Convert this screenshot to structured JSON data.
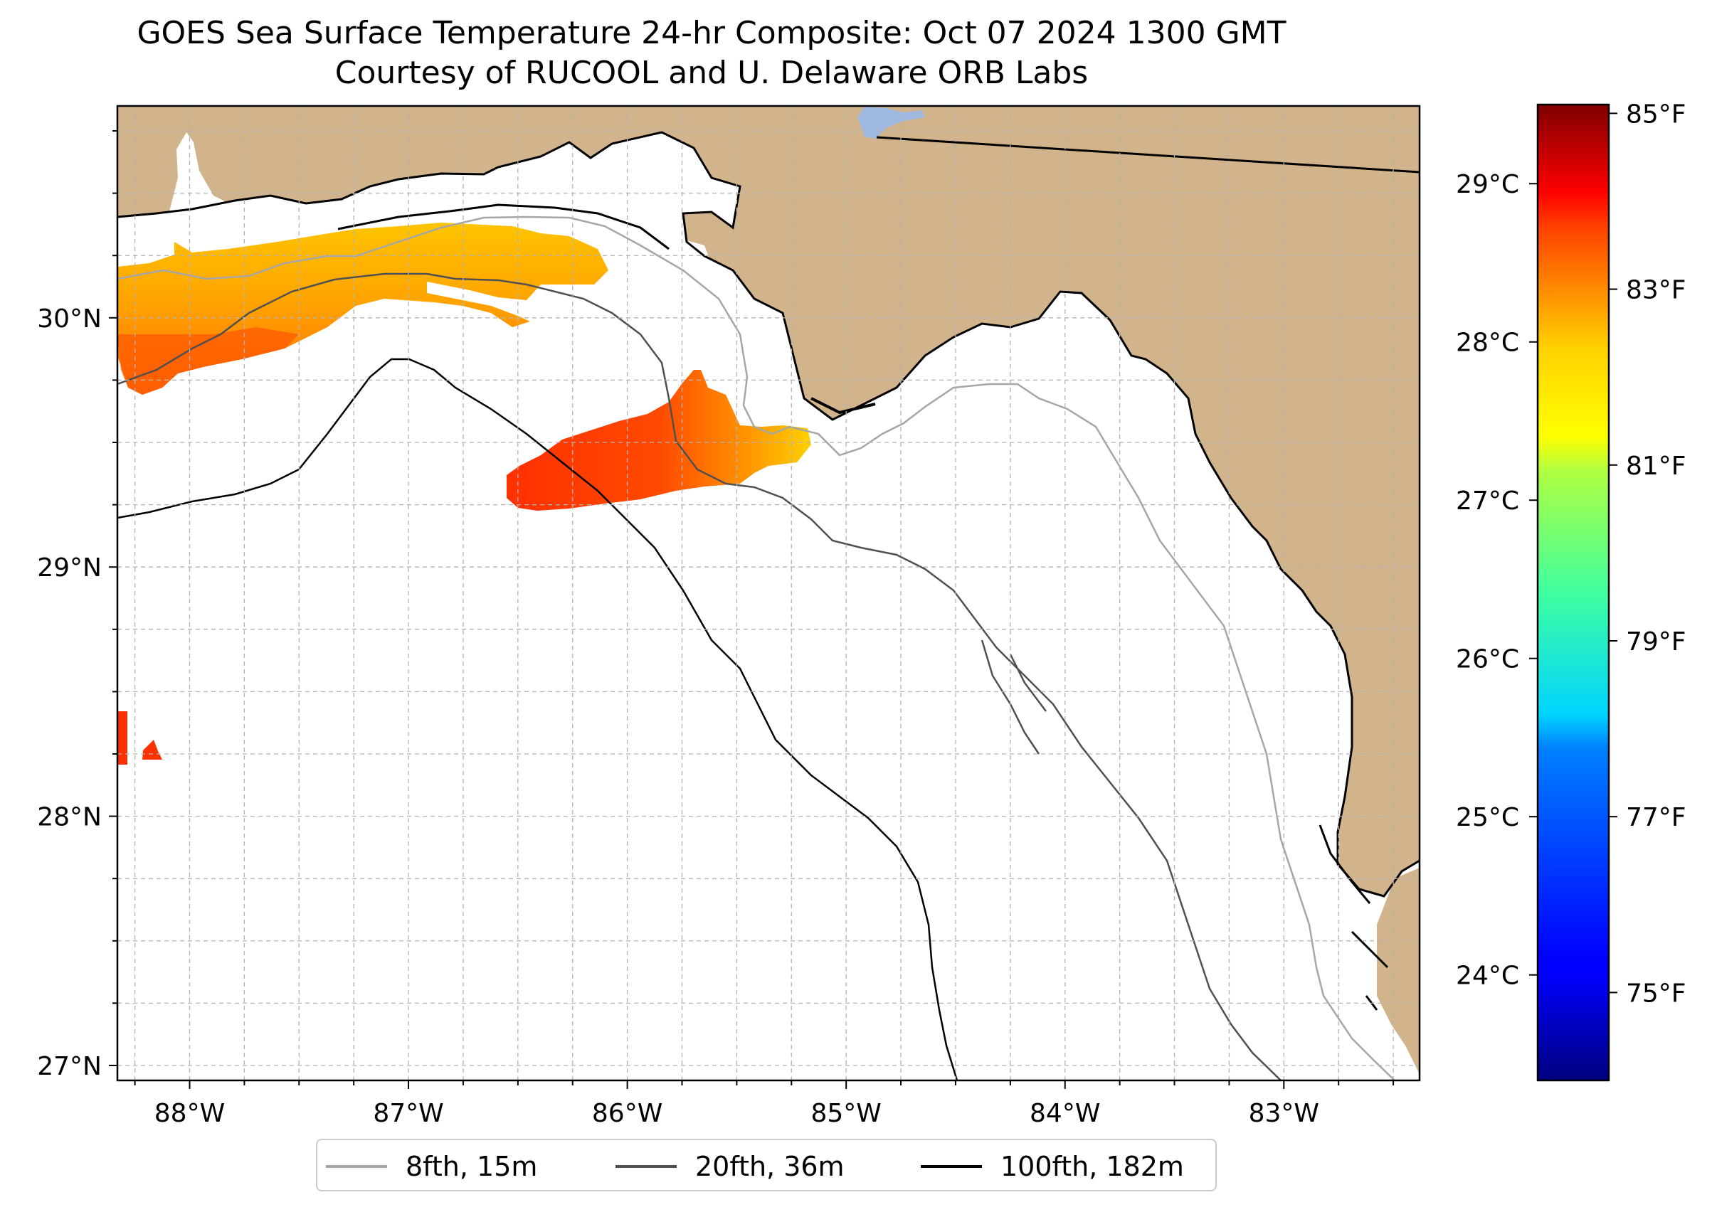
{
  "title": {
    "line1": "GOES Sea Surface Temperature 24-hr Composite: Oct 07 2024 1300 GMT",
    "line2": "Courtesy of RUCOOL and U. Delaware ORB Labs"
  },
  "map": {
    "lon_range": [
      -88.33,
      -82.38
    ],
    "lat_range": [
      26.94,
      30.85
    ],
    "lon_ticks": [
      {
        "value": -88,
        "label": "88°W"
      },
      {
        "value": -87,
        "label": "87°W"
      },
      {
        "value": -86,
        "label": "86°W"
      },
      {
        "value": -85,
        "label": "85°W"
      },
      {
        "value": -84,
        "label": "84°W"
      },
      {
        "value": -83,
        "label": "83°W"
      }
    ],
    "lat_ticks": [
      {
        "value": 27,
        "label": "27°N"
      },
      {
        "value": 28,
        "label": "28°N"
      },
      {
        "value": 29,
        "label": "29°N"
      },
      {
        "value": 30,
        "label": "30°N"
      }
    ],
    "minor_grid_step_deg": 0.25,
    "land_color": "#d2b48c",
    "water_color": "#ffffff",
    "lake_color": "#9fb8e0",
    "gridlines": "dashed"
  },
  "colorbar": {
    "colormap": "jet",
    "f_range": [
      74.0,
      85.1
    ],
    "fahrenheit_ticks": [
      {
        "value": 85,
        "label": "85°F"
      },
      {
        "value": 83,
        "label": "83°F"
      },
      {
        "value": 81,
        "label": "81°F"
      },
      {
        "value": 79,
        "label": "79°F"
      },
      {
        "value": 77,
        "label": "77°F"
      },
      {
        "value": 75,
        "label": "75°F"
      }
    ],
    "celsius_ticks": [
      {
        "value": 29,
        "label": "29°C"
      },
      {
        "value": 28,
        "label": "28°C"
      },
      {
        "value": 27,
        "label": "27°C"
      },
      {
        "value": 26,
        "label": "26°C"
      },
      {
        "value": 25,
        "label": "25°C"
      },
      {
        "value": 24,
        "label": "24°C"
      }
    ]
  },
  "sst_patches": [
    {
      "name": "panhandle-nearshore-band",
      "temp_f_range": [
        81.5,
        83.8
      ]
    },
    {
      "name": "offshore-cape-san-blas-patch",
      "temp_f_range": [
        82.0,
        84.2
      ]
    },
    {
      "name": "western-edge-patch",
      "temp_f": 84.3
    }
  ],
  "legend": {
    "location": "bottom-center",
    "entries": [
      {
        "label": "8fth, 15m",
        "color": "#a6a6a6"
      },
      {
        "label": "20fth, 36m",
        "color": "#505050"
      },
      {
        "label": "100fth, 182m",
        "color": "#000000"
      }
    ]
  }
}
